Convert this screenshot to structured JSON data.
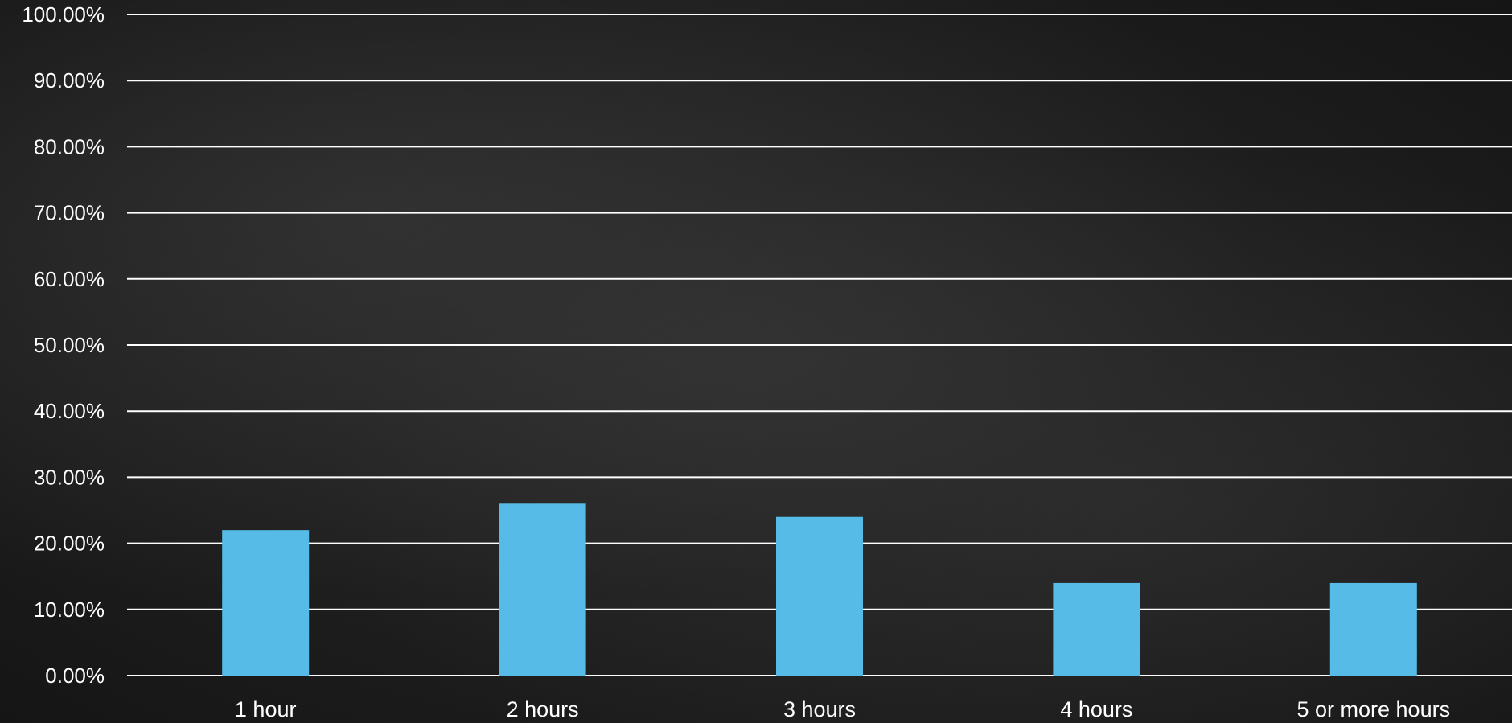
{
  "chart_data": {
    "type": "bar",
    "categories": [
      "1 hour",
      "2 hours",
      "3 hours",
      "4 hours",
      "5 or more hours"
    ],
    "values": [
      22,
      26,
      24,
      14,
      14
    ],
    "ylim": [
      0,
      100
    ],
    "yticks": [
      "0.00%",
      "10.00%",
      "20.00%",
      "30.00%",
      "40.00%",
      "50.00%",
      "60.00%",
      "70.00%",
      "80.00%",
      "90.00%",
      "100.00%"
    ],
    "grid": true,
    "bar_color": "#56bbe6",
    "background": "chalkboard",
    "title": "",
    "xlabel": "",
    "ylabel": ""
  }
}
